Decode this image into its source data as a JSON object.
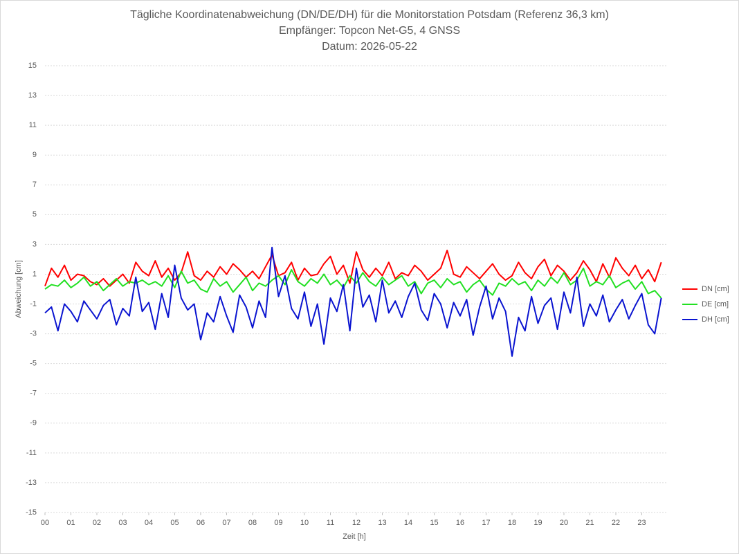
{
  "chart_data": {
    "type": "line",
    "title": "Tägliche Koordinatenabweichung (DN/DE/DH) für die Monitorstation Potsdam (Referenz 36,3 km)",
    "subtitle_lines": [
      "Empfänger: Topcon Net-G5, 4 GNSS",
      "Datum: 2026-05-22"
    ],
    "x_label": "Zeit [h]",
    "y_label": "Abweichung [cm]",
    "xlim": [
      0,
      24
    ],
    "ylim": [
      -15,
      15
    ],
    "xticks": [
      {
        "value": 0,
        "label": "00"
      },
      {
        "value": 1,
        "label": "01"
      },
      {
        "value": 2,
        "label": "02"
      },
      {
        "value": 3,
        "label": "03"
      },
      {
        "value": 4,
        "label": "04"
      },
      {
        "value": 5,
        "label": "05"
      },
      {
        "value": 6,
        "label": "06"
      },
      {
        "value": 7,
        "label": "07"
      },
      {
        "value": 8,
        "label": "08"
      },
      {
        "value": 9,
        "label": "09"
      },
      10,
      11,
      12,
      13,
      14,
      15,
      16,
      17,
      18,
      19,
      20,
      21,
      22,
      23
    ],
    "yticks": [
      -15,
      -13,
      -11,
      -9,
      -7,
      -5,
      -3,
      -1,
      1,
      3,
      5,
      7,
      9,
      11,
      13,
      15
    ],
    "grid": true,
    "legend": "right",
    "x": [
      0,
      0.25,
      0.5,
      0.75,
      1,
      1.25,
      1.5,
      1.75,
      2,
      2.25,
      2.5,
      2.75,
      3,
      3.25,
      3.5,
      3.75,
      4,
      4.25,
      4.5,
      4.75,
      5,
      5.25,
      5.5,
      5.75,
      6,
      6.25,
      6.5,
      6.75,
      7,
      7.25,
      7.5,
      7.75,
      8,
      8.25,
      8.5,
      8.75,
      9,
      9.25,
      9.5,
      9.75,
      10,
      10.25,
      10.5,
      10.75,
      11,
      11.25,
      11.5,
      11.75,
      12,
      12.25,
      12.5,
      12.75,
      13,
      13.25,
      13.5,
      13.75,
      14,
      14.25,
      14.5,
      14.75,
      15,
      15.25,
      15.5,
      15.75,
      16,
      16.25,
      16.5,
      16.75,
      17,
      17.25,
      17.5,
      17.75,
      18,
      18.25,
      18.5,
      18.75,
      19,
      19.25,
      19.5,
      19.75,
      20,
      20.25,
      20.5,
      20.75,
      21,
      21.25,
      21.5,
      21.75,
      22,
      22.25,
      22.5,
      22.75,
      23,
      23.25,
      23.5,
      23.75
    ],
    "series": [
      {
        "name": "DN [cm]",
        "color": "#ff0000",
        "values": [
          0.2,
          1.4,
          0.8,
          1.6,
          0.6,
          1.0,
          0.9,
          0.5,
          0.3,
          0.7,
          0.2,
          0.6,
          1.0,
          0.4,
          1.8,
          1.2,
          0.9,
          1.9,
          0.8,
          1.4,
          0.6,
          1.1,
          2.5,
          0.9,
          0.6,
          1.2,
          0.8,
          1.5,
          1.0,
          1.7,
          1.3,
          0.8,
          1.2,
          0.7,
          1.5,
          2.3,
          0.9,
          1.1,
          1.8,
          0.6,
          1.4,
          0.9,
          1.0,
          1.7,
          2.2,
          1.0,
          1.6,
          0.4,
          2.5,
          1.3,
          0.8,
          1.4,
          0.9,
          1.8,
          0.7,
          1.1,
          0.9,
          1.6,
          1.2,
          0.6,
          1.0,
          1.4,
          2.6,
          1.0,
          0.8,
          1.5,
          1.1,
          0.7,
          1.2,
          1.7,
          1.0,
          0.6,
          0.9,
          1.8,
          1.1,
          0.7,
          1.5,
          2.0,
          0.9,
          1.6,
          1.2,
          0.6,
          1.1,
          1.9,
          1.3,
          0.5,
          1.7,
          0.8,
          2.1,
          1.4,
          0.9,
          1.6,
          0.7,
          1.3,
          0.5,
          1.8
        ]
      },
      {
        "name": "DE [cm]",
        "color": "#22e022",
        "values": [
          0.0,
          0.3,
          0.2,
          0.6,
          0.1,
          0.4,
          0.8,
          0.2,
          0.5,
          -0.1,
          0.3,
          0.7,
          0.2,
          0.5,
          0.4,
          0.6,
          0.3,
          0.5,
          0.2,
          0.9,
          0.1,
          1.2,
          0.4,
          0.6,
          0.0,
          -0.2,
          0.7,
          0.2,
          0.5,
          -0.2,
          0.3,
          0.8,
          -0.1,
          0.4,
          0.2,
          0.6,
          0.9,
          0.3,
          1.3,
          0.5,
          0.2,
          0.7,
          0.4,
          1.0,
          0.3,
          0.6,
          0.1,
          0.9,
          0.4,
          1.1,
          0.5,
          0.2,
          0.8,
          0.3,
          0.6,
          0.9,
          0.2,
          0.5,
          -0.3,
          0.4,
          0.6,
          0.1,
          0.7,
          0.3,
          0.5,
          -0.2,
          0.3,
          0.6,
          0.0,
          -0.4,
          0.4,
          0.2,
          0.7,
          0.3,
          0.5,
          -0.1,
          0.6,
          0.2,
          0.8,
          0.4,
          1.1,
          0.3,
          0.6,
          1.4,
          0.2,
          0.5,
          0.3,
          0.9,
          0.1,
          0.4,
          0.6,
          0.0,
          0.5,
          -0.3,
          -0.1,
          -0.6
        ]
      },
      {
        "name": "DH [cm]",
        "color": "#0a14d0",
        "values": [
          -1.6,
          -1.2,
          -2.8,
          -1.0,
          -1.5,
          -2.2,
          -0.8,
          -1.4,
          -2.0,
          -1.1,
          -0.7,
          -2.4,
          -1.3,
          -1.8,
          0.8,
          -1.5,
          -0.9,
          -2.7,
          -0.3,
          -1.9,
          1.6,
          -0.6,
          -1.4,
          -1.0,
          -3.4,
          -1.6,
          -2.2,
          -0.5,
          -1.8,
          -2.9,
          -0.4,
          -1.2,
          -2.6,
          -0.8,
          -1.9,
          2.8,
          -0.5,
          0.9,
          -1.3,
          -2.0,
          -0.2,
          -2.5,
          -1.0,
          -3.7,
          -0.6,
          -1.5,
          0.3,
          -2.8,
          1.4,
          -1.2,
          -0.4,
          -2.2,
          0.6,
          -1.6,
          -0.8,
          -1.9,
          -0.5,
          0.4,
          -1.4,
          -2.1,
          -0.3,
          -1.0,
          -2.6,
          -0.9,
          -1.8,
          -0.7,
          -3.1,
          -1.2,
          0.2,
          -2.0,
          -0.6,
          -1.5,
          -4.5,
          -1.9,
          -2.8,
          -0.5,
          -2.3,
          -1.1,
          -0.6,
          -2.7,
          -0.2,
          -1.6,
          0.8,
          -2.5,
          -1.0,
          -1.8,
          -0.4,
          -2.2,
          -1.4,
          -0.7,
          -2.0,
          -1.1,
          -0.3,
          -2.4,
          -3.0,
          -0.6
        ]
      }
    ]
  }
}
